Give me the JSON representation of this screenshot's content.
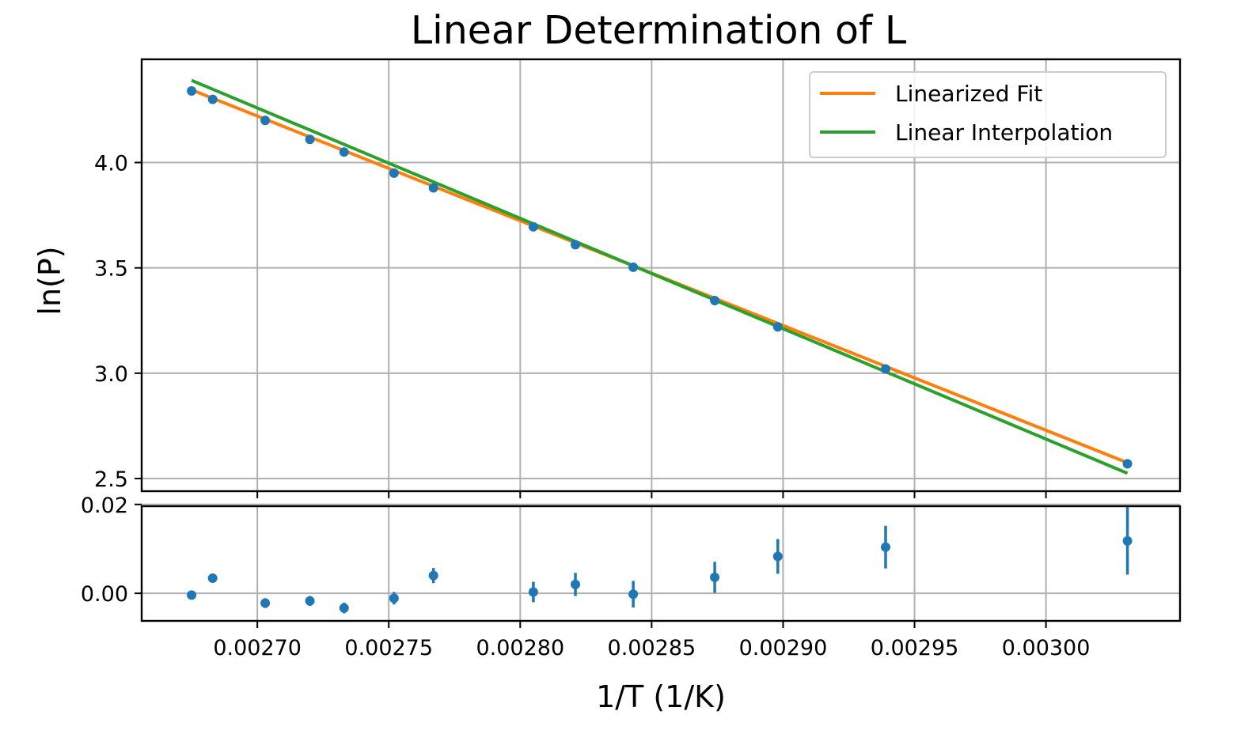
{
  "chart_data": {
    "title": "Linear Determination of L",
    "xlabel": "1/T (1/K)",
    "xlim": [
      0.002656,
      0.003051
    ],
    "x_ticks": [
      "0.00270",
      "0.00275",
      "0.00280",
      "0.00285",
      "0.00290",
      "0.00295",
      "0.00300"
    ],
    "x_tick_values": [
      0.0027,
      0.00275,
      0.0028,
      0.00285,
      0.0029,
      0.00295,
      0.003
    ],
    "grid": true,
    "panels": [
      {
        "type": "scatter",
        "role": "main",
        "ylabel": "ln(P)",
        "ylim": [
          2.44,
          4.49
        ],
        "y_ticks": [
          "2.5",
          "3.0",
          "3.5",
          "4.0"
        ],
        "y_tick_values": [
          2.5,
          3.0,
          3.5,
          4.0
        ],
        "legend_position": "top-right",
        "points": {
          "x": [
            0.002675,
            0.002683,
            0.002703,
            0.00272,
            0.002733,
            0.002752,
            0.002767,
            0.002805,
            0.002821,
            0.002843,
            0.002874,
            0.002898,
            0.002939,
            0.003031
          ],
          "y": [
            4.34,
            4.3,
            4.2,
            4.11,
            4.05,
            3.95,
            3.88,
            3.695,
            3.61,
            3.503,
            3.345,
            3.22,
            3.02,
            2.57
          ],
          "color": "#1f77b4"
        },
        "lines": [
          {
            "name": "Linearized Fit",
            "color": "#ff7f0e",
            "x": [
              0.002675,
              0.003031
            ],
            "y": [
              4.345,
              2.575
            ]
          },
          {
            "name": "Linear Interpolation",
            "color": "#2ca02c",
            "x": [
              0.002675,
              0.003031
            ],
            "y": [
              4.39,
              2.525
            ]
          }
        ]
      },
      {
        "type": "scatter",
        "role": "residuals",
        "ylabel": "",
        "ylim": [
          -0.0062,
          0.0196
        ],
        "y_ticks": [
          "0.00",
          "0.02"
        ],
        "y_tick_values": [
          0.0,
          0.02
        ],
        "points": {
          "x": [
            0.002675,
            0.002683,
            0.002703,
            0.00272,
            0.002733,
            0.002752,
            0.002767,
            0.002805,
            0.002821,
            0.002843,
            0.002874,
            0.002898,
            0.002939,
            0.003031
          ],
          "y": [
            -0.0004,
            0.0034,
            -0.0022,
            -0.0017,
            -0.0033,
            -0.0011,
            0.004,
            0.0003,
            0.002,
            -0.0002,
            0.0036,
            0.0083,
            0.0104,
            0.0118
          ],
          "yerr": [
            0.0005,
            0.0008,
            0.0011,
            0.0011,
            0.0012,
            0.0014,
            0.0017,
            0.0023,
            0.0026,
            0.003,
            0.0035,
            0.0039,
            0.0048,
            0.0076
          ],
          "color": "#1f77b4"
        }
      }
    ]
  }
}
